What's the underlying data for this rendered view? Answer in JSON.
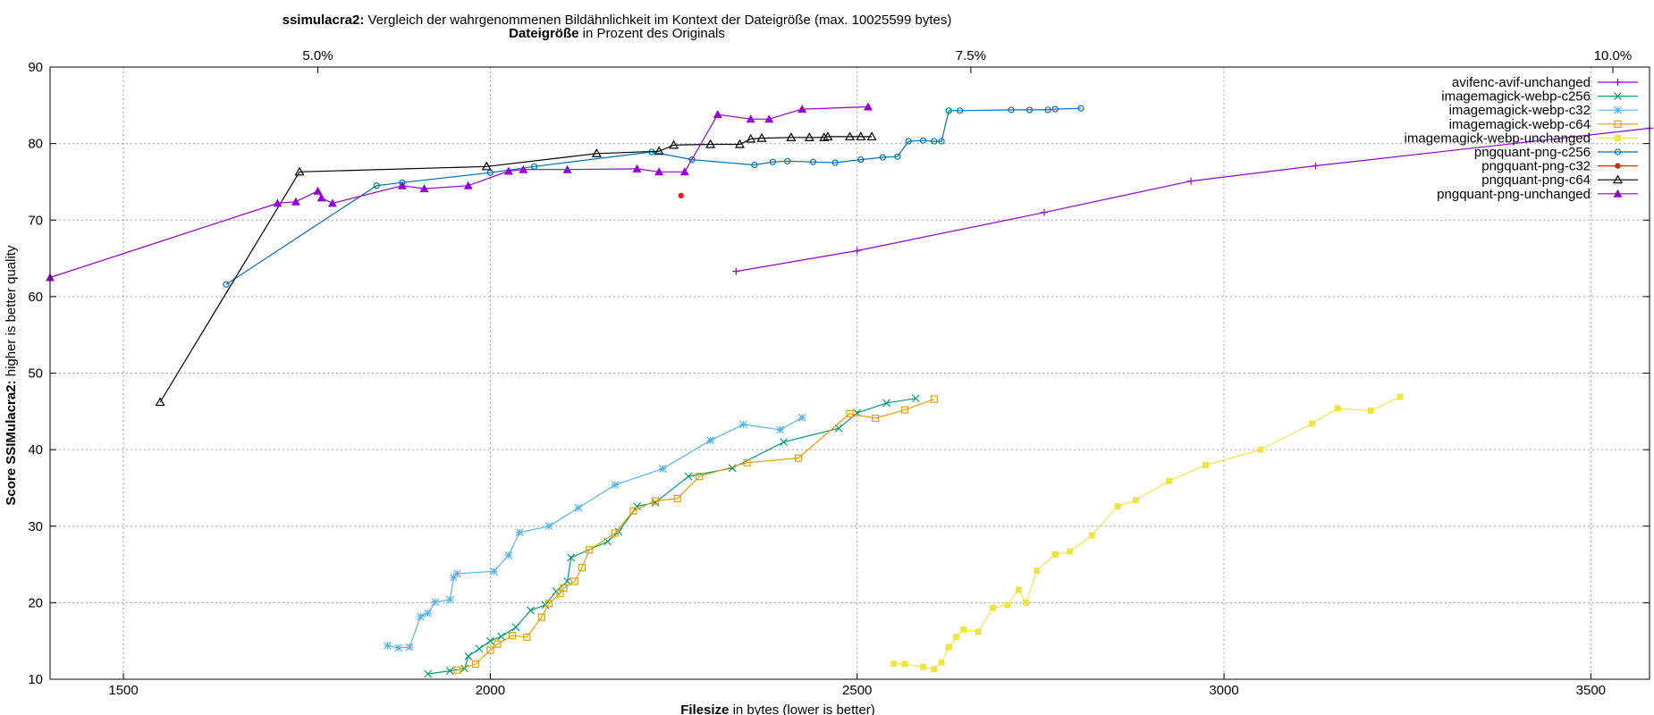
{
  "chart_data": {
    "type": "line",
    "title_bold": "ssimulacra2:",
    "title_rest": " Vergleich der wahrgenommenen Bildähnlichkeit im Kontext der Dateigröße (max. 10025599 bytes)",
    "x2label_bold": "Dateigröße",
    "x2label_rest": " in Prozent des Originals",
    "xlabel_bold": "Filesize",
    "xlabel_rest": " in bytes (lower is better)",
    "ylabel_bold": "Score SSIMulacra2:",
    "ylabel_rest": " higher is better quality",
    "xlim": [
      1400,
      3580
    ],
    "ylim": [
      10,
      90
    ],
    "x_ticks": [
      1500,
      2000,
      2500,
      3000,
      3500
    ],
    "y_ticks": [
      10,
      20,
      30,
      40,
      50,
      60,
      70,
      80,
      90
    ],
    "x2_ticks": [
      {
        "label": "5.0%",
        "value": 1765
      },
      {
        "label": "7.5%",
        "value": 2655
      },
      {
        "label": "10.0%",
        "value": 3530
      }
    ],
    "grid": true,
    "legend_position": "top-right",
    "series": [
      {
        "name": "avifenc-avif-unchanged",
        "color": "#9400d3",
        "marker": "plus",
        "points": [
          [
            2335,
            63.3
          ],
          [
            2500,
            66.0
          ],
          [
            2755,
            71.0
          ],
          [
            2955,
            75.1
          ],
          [
            3125,
            77.1
          ],
          [
            3580,
            82.0
          ]
        ]
      },
      {
        "name": "imagemagick-webp-c256",
        "color": "#009e73",
        "marker": "cross",
        "points": [
          [
            1915,
            10.7
          ],
          [
            1945,
            11.1
          ],
          [
            1965,
            11.4
          ],
          [
            1970,
            13.0
          ],
          [
            1985,
            14.0
          ],
          [
            2000,
            15.0
          ],
          [
            2015,
            15.6
          ],
          [
            2035,
            16.8
          ],
          [
            2055,
            19.0
          ],
          [
            2075,
            19.7
          ],
          [
            2090,
            21.5
          ],
          [
            2105,
            22.8
          ],
          [
            2110,
            25.9
          ],
          [
            2160,
            28.0
          ],
          [
            2175,
            29.3
          ],
          [
            2200,
            32.6
          ],
          [
            2225,
            33.1
          ],
          [
            2270,
            36.5
          ],
          [
            2330,
            37.6
          ],
          [
            2400,
            41.0
          ],
          [
            2475,
            42.8
          ],
          [
            2500,
            44.8
          ],
          [
            2540,
            46.1
          ],
          [
            2580,
            46.7
          ]
        ]
      },
      {
        "name": "imagemagick-webp-c32",
        "color": "#56b4e9",
        "marker": "star",
        "points": [
          [
            1860,
            14.4
          ],
          [
            1875,
            14.1
          ],
          [
            1890,
            14.2
          ],
          [
            1905,
            18.2
          ],
          [
            1915,
            18.6
          ],
          [
            1925,
            20.1
          ],
          [
            1945,
            20.4
          ],
          [
            1950,
            23.3
          ],
          [
            1955,
            23.8
          ],
          [
            2005,
            24.1
          ],
          [
            2025,
            26.2
          ],
          [
            2040,
            29.2
          ],
          [
            2080,
            30.0
          ],
          [
            2120,
            32.4
          ],
          [
            2170,
            35.4
          ],
          [
            2235,
            37.5
          ],
          [
            2300,
            41.2
          ],
          [
            2345,
            43.3
          ],
          [
            2395,
            42.6
          ],
          [
            2425,
            44.2
          ]
        ]
      },
      {
        "name": "imagemagick-webp-c64",
        "color": "#e69f00",
        "marker": "square",
        "points": [
          [
            1955,
            11.2
          ],
          [
            1980,
            12.0
          ],
          [
            2000,
            13.8
          ],
          [
            2010,
            14.6
          ],
          [
            2030,
            15.7
          ],
          [
            2050,
            15.5
          ],
          [
            2070,
            18.1
          ],
          [
            2080,
            19.9
          ],
          [
            2095,
            21.2
          ],
          [
            2100,
            21.9
          ],
          [
            2115,
            22.8
          ],
          [
            2125,
            24.6
          ],
          [
            2135,
            26.9
          ],
          [
            2170,
            29.1
          ],
          [
            2195,
            32.0
          ],
          [
            2225,
            33.3
          ],
          [
            2255,
            33.6
          ],
          [
            2285,
            36.5
          ],
          [
            2350,
            38.3
          ],
          [
            2420,
            38.9
          ],
          [
            2490,
            44.7
          ],
          [
            2525,
            44.1
          ],
          [
            2565,
            45.2
          ],
          [
            2605,
            46.6
          ]
        ]
      },
      {
        "name": "imagemagick-webp-unchanged",
        "color": "#f0e442",
        "marker": "filled-square",
        "points": [
          [
            2550,
            12.0
          ],
          [
            2565,
            12.0
          ],
          [
            2590,
            11.6
          ],
          [
            2605,
            11.3
          ],
          [
            2615,
            12.2
          ],
          [
            2625,
            14.2
          ],
          [
            2635,
            15.5
          ],
          [
            2645,
            16.5
          ],
          [
            2665,
            16.2
          ],
          [
            2685,
            19.3
          ],
          [
            2705,
            19.7
          ],
          [
            2720,
            21.7
          ],
          [
            2730,
            20.0
          ],
          [
            2745,
            24.2
          ],
          [
            2770,
            26.3
          ],
          [
            2790,
            26.7
          ],
          [
            2820,
            28.8
          ],
          [
            2855,
            32.6
          ],
          [
            2880,
            33.4
          ],
          [
            2925,
            35.9
          ],
          [
            2975,
            38.0
          ],
          [
            3050,
            40.0
          ],
          [
            3120,
            43.4
          ],
          [
            3155,
            45.4
          ],
          [
            3200,
            45.1
          ],
          [
            3240,
            46.9
          ]
        ]
      },
      {
        "name": "pngquant-png-c256",
        "color": "#0072b2",
        "marker": "circle",
        "points": [
          [
            1640,
            61.6
          ],
          [
            1845,
            74.5
          ],
          [
            1880,
            74.9
          ],
          [
            2000,
            76.2
          ],
          [
            2060,
            77.0
          ],
          [
            2220,
            78.9
          ],
          [
            2275,
            77.9
          ],
          [
            2360,
            77.2
          ],
          [
            2385,
            77.6
          ],
          [
            2405,
            77.7
          ],
          [
            2440,
            77.6
          ],
          [
            2470,
            77.5
          ],
          [
            2505,
            77.9
          ],
          [
            2535,
            78.2
          ],
          [
            2555,
            78.3
          ],
          [
            2570,
            80.3
          ],
          [
            2590,
            80.4
          ],
          [
            2605,
            80.3
          ],
          [
            2615,
            80.3
          ],
          [
            2625,
            84.3
          ],
          [
            2640,
            84.3
          ],
          [
            2710,
            84.4
          ],
          [
            2735,
            84.4
          ],
          [
            2760,
            84.4
          ],
          [
            2770,
            84.5
          ],
          [
            2805,
            84.6
          ]
        ]
      },
      {
        "name": "pngquant-png-c32",
        "color": "#e51e10",
        "marker": "filled-circle",
        "points": [
          [
            2260,
            73.2
          ]
        ]
      },
      {
        "name": "pngquant-png-c64",
        "color": "#000000",
        "marker": "triangle",
        "points": [
          [
            1550,
            46.2
          ],
          [
            1740,
            76.3
          ],
          [
            1995,
            77.0
          ],
          [
            2145,
            78.7
          ],
          [
            2230,
            79.0
          ],
          [
            2250,
            79.8
          ],
          [
            2300,
            79.9
          ],
          [
            2340,
            79.9
          ],
          [
            2355,
            80.6
          ],
          [
            2370,
            80.7
          ],
          [
            2410,
            80.8
          ],
          [
            2435,
            80.8
          ],
          [
            2455,
            80.8
          ],
          [
            2460,
            80.9
          ],
          [
            2490,
            80.9
          ],
          [
            2505,
            80.9
          ],
          [
            2520,
            80.9
          ]
        ]
      },
      {
        "name": "pngquant-png-unchanged",
        "color": "#9400d3",
        "marker": "filled-triangle",
        "points": [
          [
            1400,
            62.5
          ],
          [
            1710,
            72.2
          ],
          [
            1735,
            72.4
          ],
          [
            1765,
            73.8
          ],
          [
            1770,
            72.9
          ],
          [
            1785,
            72.2
          ],
          [
            1880,
            74.5
          ],
          [
            1910,
            74.1
          ],
          [
            1970,
            74.5
          ],
          [
            2025,
            76.4
          ],
          [
            2045,
            76.6
          ],
          [
            2105,
            76.6
          ],
          [
            2200,
            76.7
          ],
          [
            2230,
            76.3
          ],
          [
            2265,
            76.3
          ],
          [
            2310,
            83.8
          ],
          [
            2355,
            83.2
          ],
          [
            2380,
            83.2
          ],
          [
            2425,
            84.5
          ],
          [
            2515,
            84.8
          ]
        ]
      }
    ]
  }
}
